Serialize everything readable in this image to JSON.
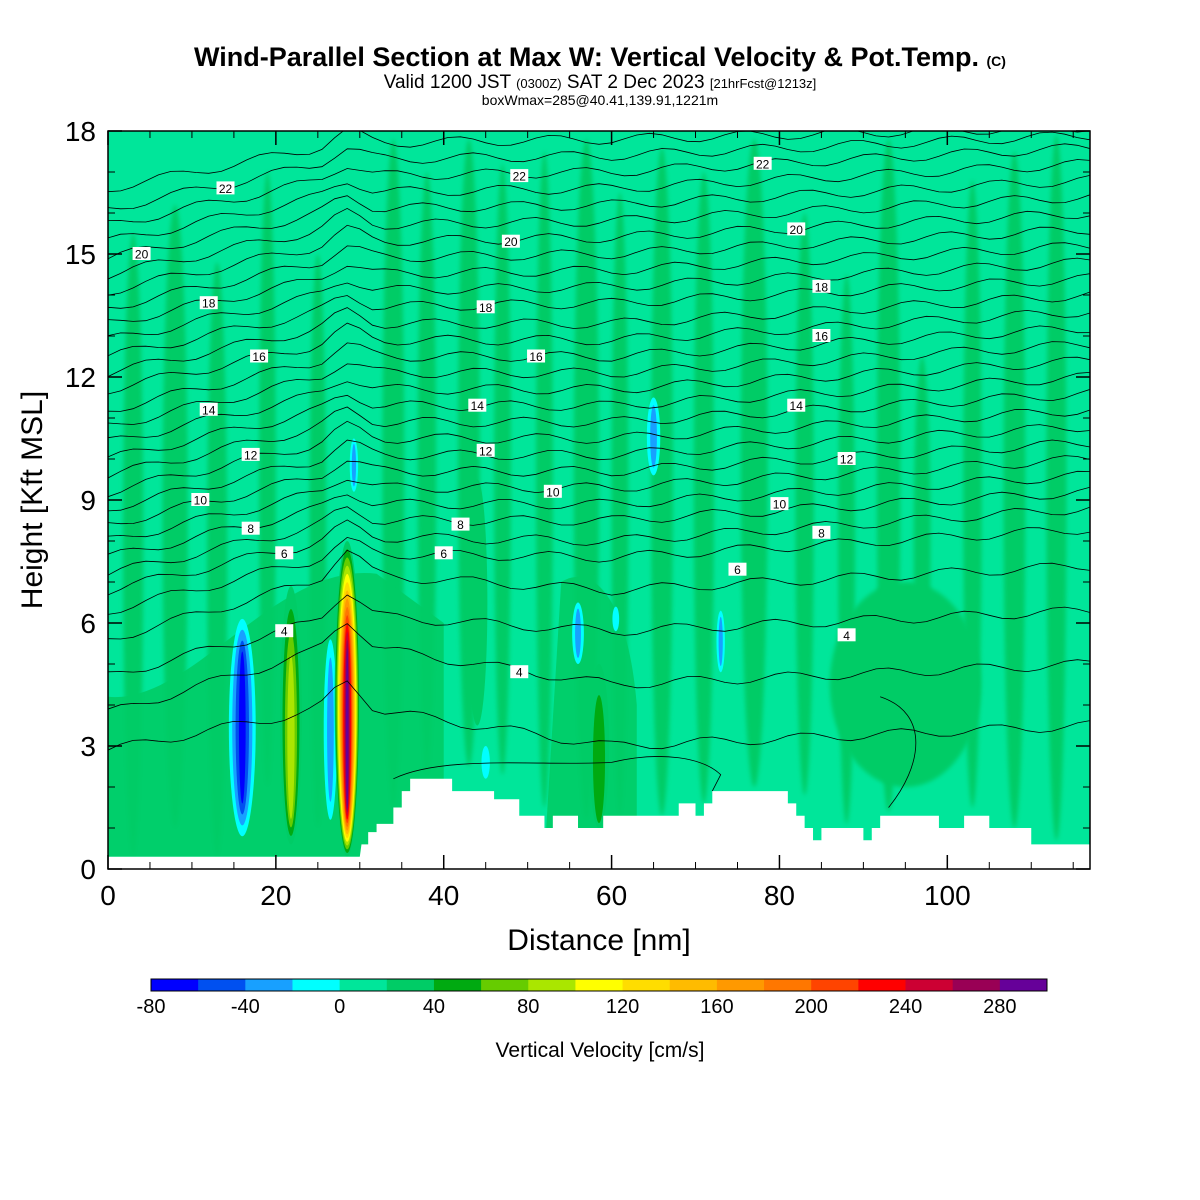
{
  "title": {
    "main": "Wind-Parallel Section at Max W: Vertical Velocity & Pot.Temp.",
    "copyright": "(C)",
    "valid_prefix": "Valid 1200 JST",
    "valid_utc": "(0300Z)",
    "valid_date": "SAT 2 Dec 2023",
    "fcst": "[21hrFcst@1213z]",
    "boxinfo": "boxWmax=285@40.41,139.91,1221m"
  },
  "chart_data": {
    "type": "heatmap",
    "xlabel": "Distance [nm]",
    "ylabel": "Height [Kft MSL]",
    "xlim": [
      0,
      117
    ],
    "ylim": [
      0,
      18
    ],
    "xticks": [
      0,
      20,
      40,
      60,
      80,
      100
    ],
    "yticks": [
      0,
      3,
      6,
      9,
      12,
      15,
      18
    ],
    "colorbar": {
      "title": "Vertical Velocity [cm/s]",
      "tick_values": [
        -80,
        -40,
        0,
        40,
        80,
        120,
        160,
        200,
        240,
        280
      ],
      "levels": [
        -80,
        -60,
        -40,
        -20,
        0,
        20,
        40,
        60,
        80,
        100,
        120,
        140,
        160,
        180,
        200,
        220,
        240,
        260,
        280,
        300
      ],
      "colors": [
        "#0000ff",
        "#0050f0",
        "#18a0ff",
        "#00ffff",
        "#00e69a",
        "#00cc66",
        "#00aa11",
        "#66cc00",
        "#aae600",
        "#ffff00",
        "#ffdd00",
        "#ffbb00",
        "#ff9900",
        "#ff7700",
        "#ff4400",
        "#ff0000",
        "#cc0033",
        "#990055",
        "#660099"
      ]
    },
    "theta_contours": {
      "units": "Pot.Temp.",
      "levels": [
        4,
        6,
        8,
        10,
        12,
        14,
        16,
        18,
        20,
        22
      ],
      "labels": [
        {
          "text": "22",
          "x": 14,
          "y": 16.6
        },
        {
          "text": "22",
          "x": 49,
          "y": 16.9
        },
        {
          "text": "22",
          "x": 78,
          "y": 17.2
        },
        {
          "text": "20",
          "x": 4,
          "y": 15.0
        },
        {
          "text": "20",
          "x": 48,
          "y": 15.3
        },
        {
          "text": "20",
          "x": 82,
          "y": 15.6
        },
        {
          "text": "18",
          "x": 12,
          "y": 13.8
        },
        {
          "text": "18",
          "x": 45,
          "y": 13.7
        },
        {
          "text": "18",
          "x": 85,
          "y": 14.2
        },
        {
          "text": "16",
          "x": 18,
          "y": 12.5
        },
        {
          "text": "16",
          "x": 51,
          "y": 12.5
        },
        {
          "text": "16",
          "x": 85,
          "y": 13.0
        },
        {
          "text": "14",
          "x": 12,
          "y": 11.2
        },
        {
          "text": "14",
          "x": 44,
          "y": 11.3
        },
        {
          "text": "14",
          "x": 82,
          "y": 11.3
        },
        {
          "text": "12",
          "x": 17,
          "y": 10.1
        },
        {
          "text": "12",
          "x": 45,
          "y": 10.2
        },
        {
          "text": "12",
          "x": 88,
          "y": 10.0
        },
        {
          "text": "10",
          "x": 11,
          "y": 9.0
        },
        {
          "text": "10",
          "x": 53,
          "y": 9.2
        },
        {
          "text": "10",
          "x": 80,
          "y": 8.9
        },
        {
          "text": "8",
          "x": 17,
          "y": 8.3
        },
        {
          "text": "8",
          "x": 42,
          "y": 8.4
        },
        {
          "text": "8",
          "x": 85,
          "y": 8.2
        },
        {
          "text": "6",
          "x": 21,
          "y": 7.7
        },
        {
          "text": "6",
          "x": 40,
          "y": 7.7
        },
        {
          "text": "6",
          "x": 75,
          "y": 7.3
        },
        {
          "text": "4",
          "x": 21,
          "y": 5.8
        },
        {
          "text": "4",
          "x": 49,
          "y": 4.8
        },
        {
          "text": "4",
          "x": 88,
          "y": 5.7
        }
      ]
    },
    "updraft_cores": [
      {
        "x": 28.5,
        "half_width": 1.5,
        "top": 8.0,
        "bottom": 0.3,
        "w_max": 285
      },
      {
        "x": 21.8,
        "half_width": 1.3,
        "top": 6.9,
        "bottom": 0.6,
        "w_max": 95
      },
      {
        "x": 44.0,
        "half_width": 1.2,
        "top": 9.5,
        "bottom": 3.5,
        "w_max": 30
      },
      {
        "x": 58.5,
        "half_width": 1.2,
        "top": 5.0,
        "bottom": 1.0,
        "w_max": 45
      }
    ],
    "downdraft_cores": [
      {
        "x": 16.0,
        "half_width": 1.6,
        "top": 6.1,
        "bottom": 0.8,
        "w_min": -70
      },
      {
        "x": 26.5,
        "half_width": 0.8,
        "top": 5.6,
        "bottom": 1.2,
        "w_min": -45
      },
      {
        "x": 29.3,
        "half_width": 0.5,
        "top": 10.5,
        "bottom": 9.2,
        "w_min": -30
      },
      {
        "x": 65.0,
        "half_width": 0.8,
        "top": 11.5,
        "bottom": 9.6,
        "w_min": -30
      },
      {
        "x": 56.0,
        "half_width": 0.7,
        "top": 6.5,
        "bottom": 5.0,
        "w_min": -30
      },
      {
        "x": 73.0,
        "half_width": 0.5,
        "top": 6.3,
        "bottom": 4.8,
        "w_min": -30
      },
      {
        "x": 45.0,
        "half_width": 0.5,
        "top": 3.0,
        "bottom": 2.2,
        "w_min": -25
      },
      {
        "x": 60.5,
        "half_width": 0.4,
        "top": 6.4,
        "bottom": 5.8,
        "w_min": -25
      }
    ],
    "terrain": [
      [
        0,
        0.3
      ],
      [
        10,
        0.3
      ],
      [
        20,
        0.3
      ],
      [
        30,
        0.3
      ],
      [
        30.2,
        0.6
      ],
      [
        31,
        0.6
      ],
      [
        31,
        0.9
      ],
      [
        32,
        0.9
      ],
      [
        32,
        1.1
      ],
      [
        34,
        1.1
      ],
      [
        34,
        1.5
      ],
      [
        35,
        1.5
      ],
      [
        35,
        1.9
      ],
      [
        36,
        1.9
      ],
      [
        36,
        2.2
      ],
      [
        41,
        2.2
      ],
      [
        41,
        1.9
      ],
      [
        46,
        1.9
      ],
      [
        46,
        1.7
      ],
      [
        49,
        1.7
      ],
      [
        49,
        1.3
      ],
      [
        52,
        1.3
      ],
      [
        52,
        1.0
      ],
      [
        53,
        1.0
      ],
      [
        53,
        1.3
      ],
      [
        56,
        1.3
      ],
      [
        56,
        1.0
      ],
      [
        59,
        1.0
      ],
      [
        59,
        1.3
      ],
      [
        68,
        1.3
      ],
      [
        68,
        1.6
      ],
      [
        70,
        1.6
      ],
      [
        70,
        1.3
      ],
      [
        71,
        1.3
      ],
      [
        71,
        1.6
      ],
      [
        72,
        1.6
      ],
      [
        72,
        1.9
      ],
      [
        81,
        1.9
      ],
      [
        81,
        1.6
      ],
      [
        82,
        1.6
      ],
      [
        82,
        1.3
      ],
      [
        83,
        1.3
      ],
      [
        83,
        1.0
      ],
      [
        84,
        1.0
      ],
      [
        84,
        0.7
      ],
      [
        85,
        0.7
      ],
      [
        85,
        1.0
      ],
      [
        90,
        1.0
      ],
      [
        90,
        0.7
      ],
      [
        91,
        0.7
      ],
      [
        91,
        1.0
      ],
      [
        92,
        1.0
      ],
      [
        92,
        1.3
      ],
      [
        99,
        1.3
      ],
      [
        99,
        1.0
      ],
      [
        102,
        1.0
      ],
      [
        102,
        1.3
      ],
      [
        105,
        1.3
      ],
      [
        105,
        1.0
      ],
      [
        110,
        1.0
      ],
      [
        110,
        0.6
      ],
      [
        117,
        0.6
      ]
    ]
  }
}
